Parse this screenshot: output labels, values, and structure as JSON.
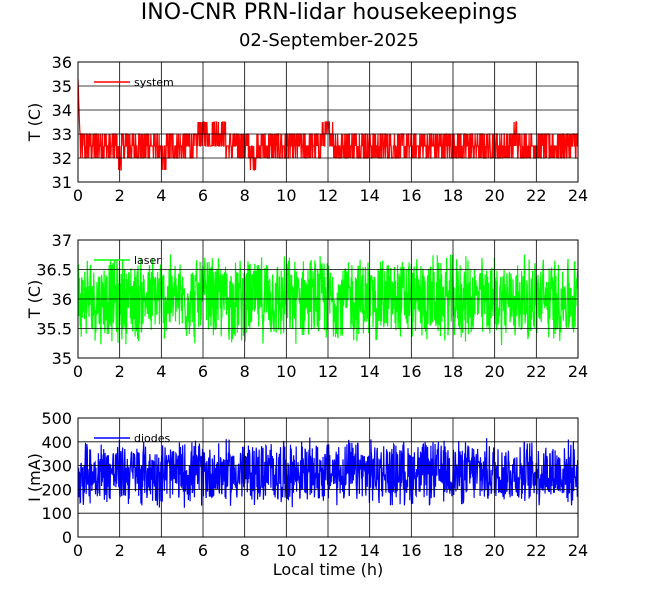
{
  "title": "INO-CNR PRN-lidar housekeepings",
  "subtitle": "02-September-2025",
  "chart_data": [
    {
      "type": "line",
      "name": "system-temperature",
      "ylabel": "T (C)",
      "xlabel": "",
      "xlim": [
        0,
        24
      ],
      "ylim": [
        31,
        36
      ],
      "xticks": [
        "0",
        "2",
        "4",
        "6",
        "8",
        "10",
        "12",
        "14",
        "16",
        "18",
        "20",
        "22",
        "24"
      ],
      "yticks": [
        "31",
        "32",
        "33",
        "34",
        "35",
        "36"
      ],
      "grid": true,
      "legend": "top-left",
      "series": [
        {
          "name": "system",
          "color": "#ff0000",
          "style": "step-noise",
          "x": [
            0,
            0.05,
            0.1,
            0.2,
            0.5,
            1,
            1.5,
            2,
            2.5,
            3,
            3.5,
            4,
            4.5,
            5,
            5.5,
            6,
            6.5,
            7,
            7.5,
            8,
            8.5,
            9,
            9.5,
            10,
            10.5,
            11,
            11.5,
            12,
            12.5,
            13,
            13.5,
            14,
            14.5,
            15,
            15.5,
            16,
            16.5,
            17,
            17.5,
            18,
            18.5,
            19,
            19.5,
            20,
            20.5,
            21,
            21.5,
            22,
            22.5,
            23,
            23.5,
            24
          ],
          "values": [
            35.3,
            34,
            32.8,
            32.5,
            32.5,
            32.5,
            32.5,
            32.2,
            32.5,
            32.5,
            32.5,
            32.2,
            32.3,
            32.5,
            32.5,
            33,
            33,
            32.8,
            32.5,
            32.3,
            32.2,
            32.5,
            32.6,
            32.5,
            32.5,
            32.5,
            32.6,
            33,
            32.5,
            32.3,
            32.5,
            32.4,
            32.6,
            32.5,
            32.5,
            32.4,
            32.5,
            32.3,
            32.4,
            32.5,
            32.4,
            32.6,
            32.5,
            32.5,
            32.5,
            32.8,
            32.5,
            32.6,
            32.5,
            32.3,
            32.5,
            32.5
          ],
          "noise": 0.5
        }
      ]
    },
    {
      "type": "line",
      "name": "laser-temperature",
      "ylabel": "T (C)",
      "xlabel": "",
      "xlim": [
        0,
        24
      ],
      "ylim": [
        35,
        37
      ],
      "xticks": [
        "0",
        "2",
        "4",
        "6",
        "8",
        "10",
        "12",
        "14",
        "16",
        "18",
        "20",
        "22",
        "24"
      ],
      "yticks": [
        "35",
        "35.5",
        "36",
        "36.5",
        "37"
      ],
      "grid": true,
      "legend": "top-left",
      "series": [
        {
          "name": "laser",
          "color": "#00ff00",
          "style": "noise",
          "mean": 36.0,
          "noise": 0.8
        }
      ]
    },
    {
      "type": "line",
      "name": "diode-current",
      "ylabel": "I (mA)",
      "xlabel": "Local time (h)",
      "xlim": [
        0,
        24
      ],
      "ylim": [
        0,
        500
      ],
      "xticks": [
        "0",
        "2",
        "4",
        "6",
        "8",
        "10",
        "12",
        "14",
        "16",
        "18",
        "20",
        "22",
        "24"
      ],
      "yticks": [
        "0",
        "100",
        "200",
        "300",
        "400",
        "500"
      ],
      "grid": true,
      "legend": "top-left",
      "series": [
        {
          "name": "diodes",
          "color": "#0000ff",
          "style": "noise",
          "mean": 270,
          "noise": 150
        }
      ]
    }
  ]
}
